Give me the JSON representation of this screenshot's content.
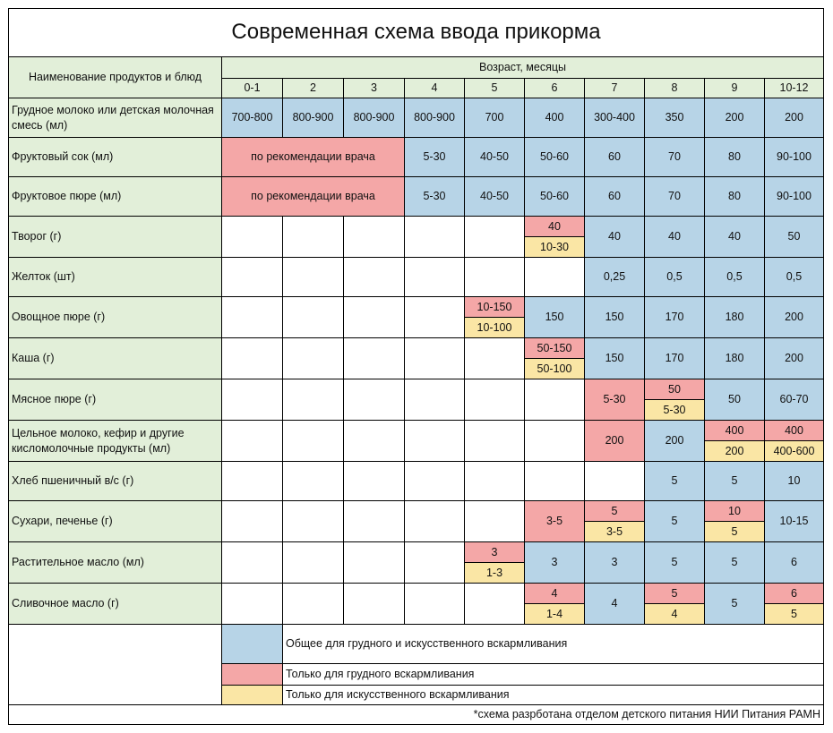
{
  "title": "Современная схема ввода прикорма",
  "header": {
    "name_col": "Наименование продуктов и блюд",
    "age_label": "Возраст, месяцы",
    "ages": [
      "0-1",
      "2",
      "3",
      "4",
      "5",
      "6",
      "7",
      "8",
      "9",
      "10-12"
    ]
  },
  "colors": {
    "blue": "#b7d4e7",
    "pink": "#f4a7a7",
    "yellow": "#fae6a5",
    "green": "#e2efd9",
    "white": "#ffffff"
  },
  "rows": [
    {
      "name": "Грудное молоко или детская молочная смесь (мл)",
      "cells": [
        {
          "v": "700-800",
          "c": "blue"
        },
        {
          "v": "800-900",
          "c": "blue"
        },
        {
          "v": "800-900",
          "c": "blue"
        },
        {
          "v": "800-900",
          "c": "blue"
        },
        {
          "v": "700",
          "c": "blue"
        },
        {
          "v": "400",
          "c": "blue"
        },
        {
          "v": "300-400",
          "c": "blue"
        },
        {
          "v": "350",
          "c": "blue"
        },
        {
          "v": "200",
          "c": "blue"
        },
        {
          "v": "200",
          "c": "blue"
        }
      ]
    },
    {
      "name": "Фруктовый сок (мл)",
      "cells": [
        {
          "v": "по рекомендации врача",
          "c": "pink",
          "span": 3
        },
        {
          "v": "5-30",
          "c": "blue"
        },
        {
          "v": "40-50",
          "c": "blue"
        },
        {
          "v": "50-60",
          "c": "blue"
        },
        {
          "v": "60",
          "c": "blue"
        },
        {
          "v": "70",
          "c": "blue"
        },
        {
          "v": "80",
          "c": "blue"
        },
        {
          "v": "90-100",
          "c": "blue"
        }
      ]
    },
    {
      "name": "Фруктовое пюре (мл)",
      "cells": [
        {
          "v": "по рекомендации врача",
          "c": "pink",
          "span": 3
        },
        {
          "v": "5-30",
          "c": "blue"
        },
        {
          "v": "40-50",
          "c": "blue"
        },
        {
          "v": "50-60",
          "c": "blue"
        },
        {
          "v": "60",
          "c": "blue"
        },
        {
          "v": "70",
          "c": "blue"
        },
        {
          "v": "80",
          "c": "blue"
        },
        {
          "v": "90-100",
          "c": "blue"
        }
      ]
    },
    {
      "name": "Творог (г)",
      "cells": [
        {
          "v": "",
          "c": "white"
        },
        {
          "v": "",
          "c": "white"
        },
        {
          "v": "",
          "c": "white"
        },
        {
          "v": "",
          "c": "white"
        },
        {
          "v": "",
          "c": "white"
        },
        {
          "top": {
            "v": "40",
            "c": "pink"
          },
          "bot": {
            "v": "10-30",
            "c": "yellow"
          }
        },
        {
          "v": "40",
          "c": "blue"
        },
        {
          "v": "40",
          "c": "blue"
        },
        {
          "v": "40",
          "c": "blue"
        },
        {
          "v": "50",
          "c": "blue"
        }
      ]
    },
    {
      "name": "Желток (шт)",
      "cells": [
        {
          "v": "",
          "c": "white"
        },
        {
          "v": "",
          "c": "white"
        },
        {
          "v": "",
          "c": "white"
        },
        {
          "v": "",
          "c": "white"
        },
        {
          "v": "",
          "c": "white"
        },
        {
          "v": "",
          "c": "white"
        },
        {
          "v": "0,25",
          "c": "blue"
        },
        {
          "v": "0,5",
          "c": "blue"
        },
        {
          "v": "0,5",
          "c": "blue"
        },
        {
          "v": "0,5",
          "c": "blue"
        }
      ]
    },
    {
      "name": "Овощное пюре (г)",
      "cells": [
        {
          "v": "",
          "c": "white"
        },
        {
          "v": "",
          "c": "white"
        },
        {
          "v": "",
          "c": "white"
        },
        {
          "v": "",
          "c": "white"
        },
        {
          "top": {
            "v": "10-150",
            "c": "pink"
          },
          "bot": {
            "v": "10-100",
            "c": "yellow"
          }
        },
        {
          "v": "150",
          "c": "blue"
        },
        {
          "v": "150",
          "c": "blue"
        },
        {
          "v": "170",
          "c": "blue"
        },
        {
          "v": "180",
          "c": "blue"
        },
        {
          "v": "200",
          "c": "blue"
        }
      ]
    },
    {
      "name": "Каша (г)",
      "cells": [
        {
          "v": "",
          "c": "white"
        },
        {
          "v": "",
          "c": "white"
        },
        {
          "v": "",
          "c": "white"
        },
        {
          "v": "",
          "c": "white"
        },
        {
          "v": "",
          "c": "white"
        },
        {
          "top": {
            "v": "50-150",
            "c": "pink"
          },
          "bot": {
            "v": "50-100",
            "c": "yellow"
          }
        },
        {
          "v": "150",
          "c": "blue"
        },
        {
          "v": "170",
          "c": "blue"
        },
        {
          "v": "180",
          "c": "blue"
        },
        {
          "v": "200",
          "c": "blue"
        }
      ]
    },
    {
      "name": "Мясное пюре (г)",
      "cells": [
        {
          "v": "",
          "c": "white"
        },
        {
          "v": "",
          "c": "white"
        },
        {
          "v": "",
          "c": "white"
        },
        {
          "v": "",
          "c": "white"
        },
        {
          "v": "",
          "c": "white"
        },
        {
          "v": "",
          "c": "white"
        },
        {
          "v": "5-30",
          "c": "pink"
        },
        {
          "top": {
            "v": "50",
            "c": "pink"
          },
          "bot": {
            "v": "5-30",
            "c": "yellow"
          }
        },
        {
          "v": "50",
          "c": "blue"
        },
        {
          "v": "60-70",
          "c": "blue"
        }
      ]
    },
    {
      "name": "Цельное молоко, кефир и другие кисломолочные продукты (мл)",
      "cells": [
        {
          "v": "",
          "c": "white"
        },
        {
          "v": "",
          "c": "white"
        },
        {
          "v": "",
          "c": "white"
        },
        {
          "v": "",
          "c": "white"
        },
        {
          "v": "",
          "c": "white"
        },
        {
          "v": "",
          "c": "white"
        },
        {
          "v": "200",
          "c": "pink"
        },
        {
          "v": "200",
          "c": "blue"
        },
        {
          "top": {
            "v": "400",
            "c": "pink"
          },
          "bot": {
            "v": "200",
            "c": "yellow"
          }
        },
        {
          "top": {
            "v": "400",
            "c": "pink"
          },
          "bot": {
            "v": "400-600",
            "c": "yellow"
          }
        }
      ]
    },
    {
      "name": "Хлеб пшеничный в/с (г)",
      "cells": [
        {
          "v": "",
          "c": "white"
        },
        {
          "v": "",
          "c": "white"
        },
        {
          "v": "",
          "c": "white"
        },
        {
          "v": "",
          "c": "white"
        },
        {
          "v": "",
          "c": "white"
        },
        {
          "v": "",
          "c": "white"
        },
        {
          "v": "",
          "c": "white"
        },
        {
          "v": "5",
          "c": "blue"
        },
        {
          "v": "5",
          "c": "blue"
        },
        {
          "v": "10",
          "c": "blue"
        }
      ]
    },
    {
      "name": "Сухари, печенье (г)",
      "cells": [
        {
          "v": "",
          "c": "white"
        },
        {
          "v": "",
          "c": "white"
        },
        {
          "v": "",
          "c": "white"
        },
        {
          "v": "",
          "c": "white"
        },
        {
          "v": "",
          "c": "white"
        },
        {
          "v": "3-5",
          "c": "pink"
        },
        {
          "top": {
            "v": "5",
            "c": "pink"
          },
          "bot": {
            "v": "3-5",
            "c": "yellow"
          }
        },
        {
          "v": "5",
          "c": "blue"
        },
        {
          "top": {
            "v": "10",
            "c": "pink"
          },
          "bot": {
            "v": "5",
            "c": "yellow"
          }
        },
        {
          "v": "10-15",
          "c": "blue"
        }
      ]
    },
    {
      "name": "Растительное масло (мл)",
      "cells": [
        {
          "v": "",
          "c": "white"
        },
        {
          "v": "",
          "c": "white"
        },
        {
          "v": "",
          "c": "white"
        },
        {
          "v": "",
          "c": "white"
        },
        {
          "top": {
            "v": "3",
            "c": "pink"
          },
          "bot": {
            "v": "1-3",
            "c": "yellow"
          }
        },
        {
          "v": "3",
          "c": "blue"
        },
        {
          "v": "3",
          "c": "blue"
        },
        {
          "v": "5",
          "c": "blue"
        },
        {
          "v": "5",
          "c": "blue"
        },
        {
          "v": "6",
          "c": "blue"
        }
      ]
    },
    {
      "name": "Сливочное масло (г)",
      "cells": [
        {
          "v": "",
          "c": "white"
        },
        {
          "v": "",
          "c": "white"
        },
        {
          "v": "",
          "c": "white"
        },
        {
          "v": "",
          "c": "white"
        },
        {
          "v": "",
          "c": "white"
        },
        {
          "top": {
            "v": "4",
            "c": "pink"
          },
          "bot": {
            "v": "1-4",
            "c": "yellow"
          }
        },
        {
          "v": "4",
          "c": "blue"
        },
        {
          "top": {
            "v": "5",
            "c": "pink"
          },
          "bot": {
            "v": "4",
            "c": "yellow"
          }
        },
        {
          "v": "5",
          "c": "blue"
        },
        {
          "top": {
            "v": "6",
            "c": "pink"
          },
          "bot": {
            "v": "5",
            "c": "yellow"
          }
        }
      ]
    }
  ],
  "legend": [
    {
      "label": "Общее для грудного и искусственного вскармливания",
      "c": "blue"
    },
    {
      "label": "Только для грудного вскармливания",
      "c": "pink"
    },
    {
      "label": "Только для искусственного вскармливания",
      "c": "yellow"
    }
  ],
  "footnote": "*схема разрботана отделом детского питания НИИ Питания РАМН"
}
